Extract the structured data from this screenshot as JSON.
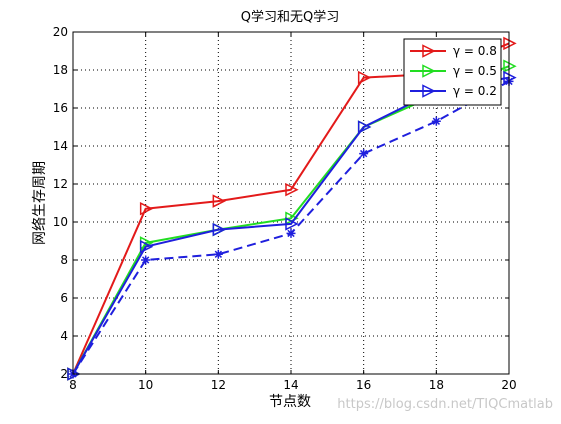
{
  "chart_data": {
    "type": "line",
    "title": "Q学习和无Q学习",
    "xlabel": "节点数",
    "ylabel": "网络生存周期",
    "xlim": [
      8,
      20
    ],
    "ylim": [
      2,
      20
    ],
    "xticks": [
      8,
      10,
      12,
      14,
      16,
      18,
      20
    ],
    "yticks": [
      2,
      4,
      6,
      8,
      10,
      12,
      14,
      16,
      18,
      20
    ],
    "grid": true,
    "legend_position": "top-right",
    "x": [
      8,
      10,
      12,
      14,
      16,
      18,
      20
    ],
    "series": [
      {
        "name": "γ = 0.8",
        "color": "#e31a1a",
        "marker": "triangle-right",
        "line": "solid",
        "values": [
          2.0,
          10.7,
          11.1,
          11.7,
          17.6,
          17.8,
          19.4
        ]
      },
      {
        "name": "γ = 0.5",
        "color": "#22dd22",
        "marker": "triangle-right",
        "line": "solid",
        "values": [
          2.0,
          8.9,
          9.6,
          10.2,
          15.0,
          16.7,
          18.2
        ]
      },
      {
        "name": "γ = 0.2",
        "color": "#1f1fdd",
        "marker": "triangle-right",
        "line": "solid",
        "values": [
          2.0,
          8.7,
          9.6,
          9.9,
          15.0,
          16.9,
          17.6
        ]
      },
      {
        "name": "",
        "color": "#1f1fdd",
        "marker": "star",
        "line": "dashed",
        "values": [
          2.0,
          8.0,
          8.3,
          9.4,
          13.6,
          15.3,
          17.4
        ]
      }
    ]
  },
  "watermark": "https://blog.csdn.net/TIQCmatlab"
}
